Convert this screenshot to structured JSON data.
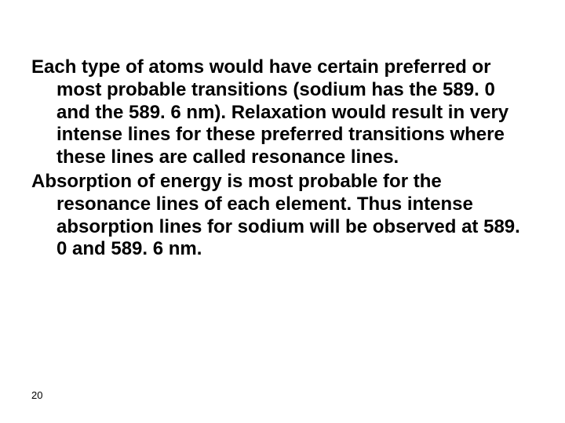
{
  "slide": {
    "background_color": "#ffffff",
    "text_color": "#000000",
    "font_family": "Arial",
    "font_weight": 700,
    "font_size_pt": 18,
    "line_height": 1.2,
    "paragraphs": [
      "Each type of atoms would have certain preferred or most probable transitions (sodium has the 589. 0 and the 589. 6 nm). Relaxation would result in very intense lines for these preferred transitions where these lines are called resonance lines.",
      "Absorption of energy is most probable for the resonance lines of each element. Thus intense absorption lines for sodium will be observed at 589. 0 and 589. 6 nm."
    ],
    "page_number": "20",
    "page_number_fontsize_pt": 10
  }
}
